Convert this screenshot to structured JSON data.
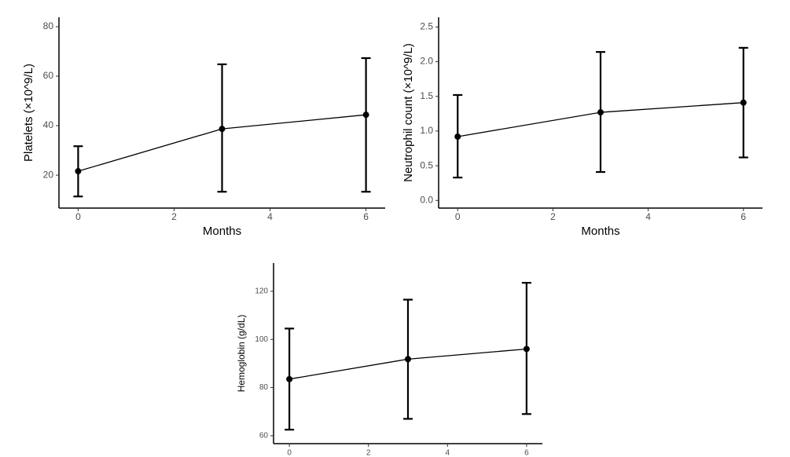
{
  "chart_data": [
    {
      "type": "line",
      "x_label": "Months",
      "y_label": "Platelets (×10^9/L)",
      "x": [
        0,
        3,
        6
      ],
      "values": [
        21.6,
        38.7,
        44.4
      ],
      "lower": [
        11.4,
        13.3,
        13.3
      ],
      "upper": [
        31.7,
        64.8,
        67.3
      ],
      "color": "#000000",
      "xlim": [
        -0.4,
        6.4
      ],
      "ylim": [
        6.7,
        83.8
      ],
      "xticks": [
        0,
        2,
        4,
        6
      ],
      "yticks": [
        20,
        40,
        60,
        80
      ]
    },
    {
      "type": "line",
      "x_label": "Months",
      "y_label": "Neutrophil count (×10^9/L)",
      "x": [
        0,
        3,
        6
      ],
      "values": [
        0.92,
        1.27,
        1.41
      ],
      "lower": [
        0.33,
        0.41,
        0.62
      ],
      "upper": [
        1.52,
        2.14,
        2.2
      ],
      "color": "#000000",
      "xlim": [
        -0.4,
        6.4
      ],
      "ylim": [
        -0.11,
        2.64
      ],
      "xticks": [
        0,
        2,
        4,
        6
      ],
      "yticks": [
        {
          "value": 0,
          "label": "0.0"
        },
        0.5,
        {
          "value": 1,
          "label": "1.0"
        },
        1.5,
        {
          "value": 2,
          "label": "2.0"
        },
        2.5
      ]
    },
    {
      "type": "line",
      "x_label": "Months",
      "y_label": "Hemoglobin (g/dL)",
      "x": [
        0,
        3,
        6
      ],
      "values": [
        83.5,
        91.8,
        96
      ],
      "lower": [
        62.5,
        67,
        69
      ],
      "upper": [
        104.5,
        116.5,
        123.5
      ],
      "color": "#000000",
      "xlim": [
        -0.4,
        6.4
      ],
      "ylim": [
        56.7,
        131.7
      ],
      "xticks": [
        0,
        2,
        4,
        6
      ],
      "yticks": [
        60,
        80,
        100,
        120
      ]
    }
  ]
}
